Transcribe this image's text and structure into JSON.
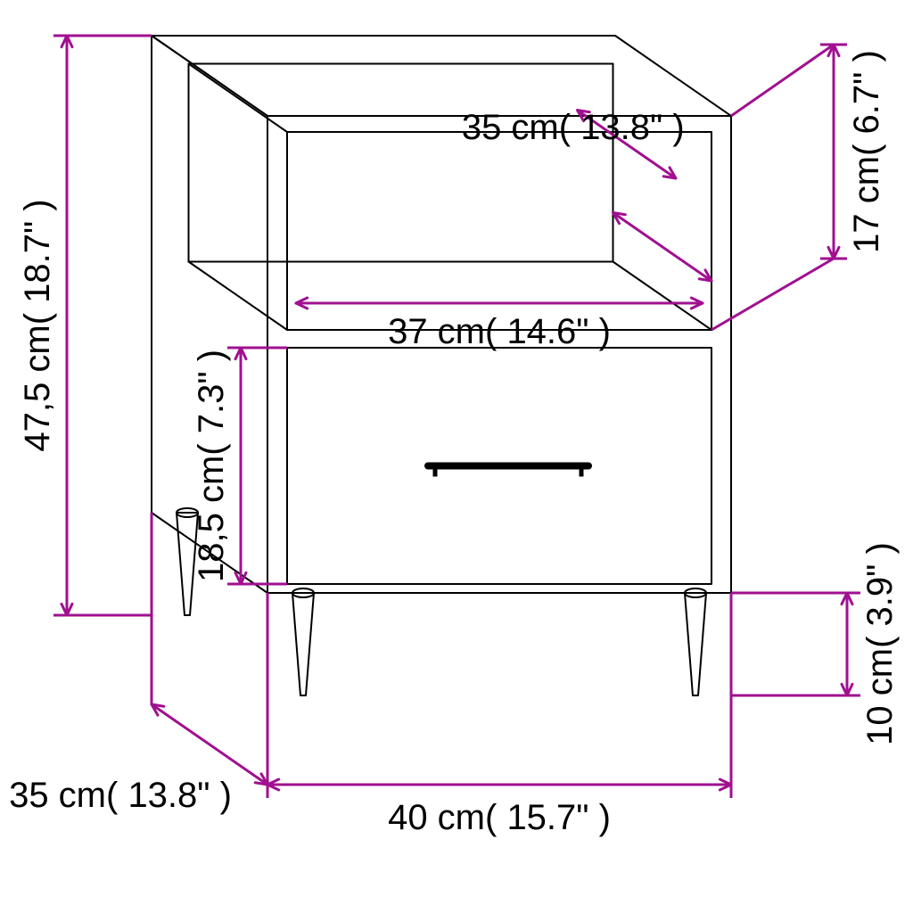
{
  "accent_color": "#a01090",
  "outline_color": "#000000",
  "text_color": "#000000",
  "bg": "#ffffff",
  "dim_line_width": 3,
  "outline_width": 2,
  "labels": {
    "height_total": "47,5 cm( 18.7\" )",
    "open_h": "17 cm( 6.7\" )",
    "open_depth": "35 cm( 13.8\" )",
    "open_width": "37 cm( 14.6\" )",
    "drawer_h": "18,5 cm( 7.3\" )",
    "leg_h": "10 cm( 3.9\" )",
    "depth": "35 cm( 13.8\" )",
    "width": "40 cm( 15.7\" )"
  },
  "font_size_main": 40
}
